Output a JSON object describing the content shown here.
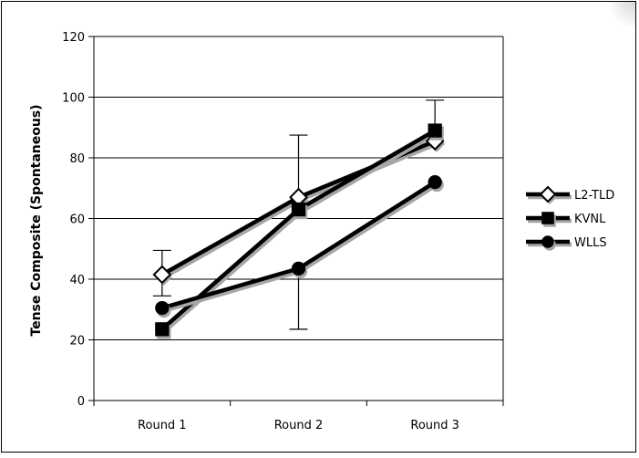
{
  "chart_data": {
    "type": "line",
    "title": "",
    "xlabel": "",
    "ylabel": "Tense Composite (Spontaneous)",
    "categories": [
      "Round 1",
      "Round 2",
      "Round 3"
    ],
    "ylim": [
      0,
      120
    ],
    "yticks": [
      0,
      20,
      40,
      60,
      80,
      100,
      120
    ],
    "grid": "horizontal",
    "legend_position": "right",
    "series": [
      {
        "name": "L2-TLD",
        "marker": "diamond-open",
        "values": [
          41.5,
          67,
          85.5
        ],
        "error_plus": [
          8,
          0,
          0
        ],
        "error_minus": [
          7,
          0,
          0
        ]
      },
      {
        "name": "KVNL",
        "marker": "square-filled",
        "values": [
          23.5,
          63,
          89
        ],
        "error_plus": [
          0,
          24.5,
          10
        ],
        "error_minus": [
          0,
          0,
          0
        ]
      },
      {
        "name": "WLLS",
        "marker": "circle-filled",
        "values": [
          30.5,
          43.5,
          72
        ],
        "error_plus": [
          0,
          0,
          0
        ],
        "error_minus": [
          0,
          20,
          0
        ]
      }
    ],
    "colors": {
      "line": "#000000",
      "shadow": "#a6a6a6",
      "grid": "#000000",
      "background": "#ffffff"
    }
  }
}
